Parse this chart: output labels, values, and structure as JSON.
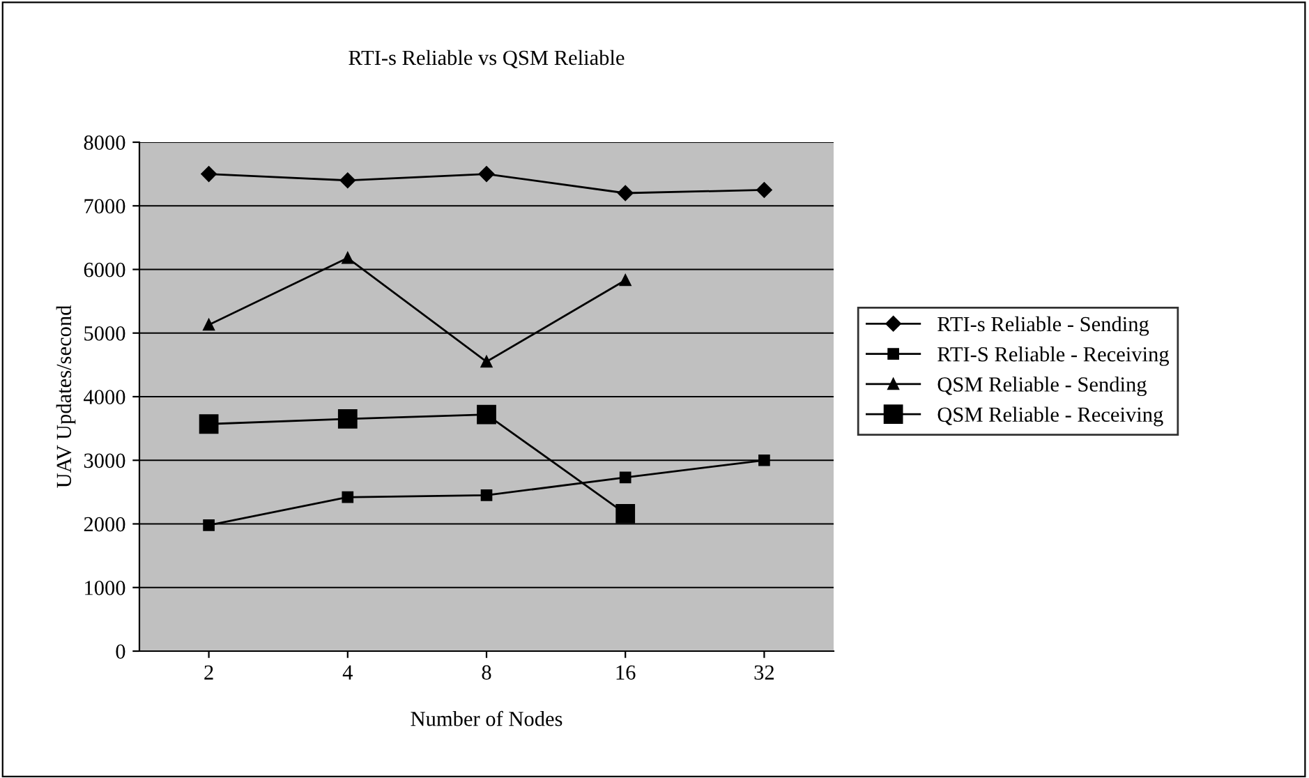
{
  "chart_data": {
    "type": "line",
    "title": "RTI-s Reliable vs QSM Reliable",
    "xlabel": "Number of Nodes",
    "ylabel": "UAV Updates/second",
    "categories": [
      "2",
      "4",
      "8",
      "16",
      "32"
    ],
    "ylim": [
      0,
      8000
    ],
    "yticks": [
      0,
      1000,
      2000,
      3000,
      4000,
      5000,
      6000,
      7000,
      8000
    ],
    "grid": "y",
    "legend": "right",
    "series": [
      {
        "name": "RTI-s Reliable - Sending",
        "color": "#000000",
        "marker": "diamond",
        "values": [
          7500,
          7400,
          7500,
          7200,
          7250
        ]
      },
      {
        "name": "RTI-S Reliable - Receiving",
        "color": "#000000",
        "marker": "square",
        "values": [
          1980,
          2420,
          2450,
          2730,
          3000
        ]
      },
      {
        "name": "QSM Reliable - Sending",
        "color": "#000000",
        "marker": "triangle",
        "values": [
          5130,
          6180,
          4550,
          5830,
          null
        ]
      },
      {
        "name": "QSM Reliable - Receiving",
        "color": "#000000",
        "marker": "square",
        "values": [
          3570,
          3650,
          3720,
          2160,
          null
        ]
      }
    ]
  }
}
